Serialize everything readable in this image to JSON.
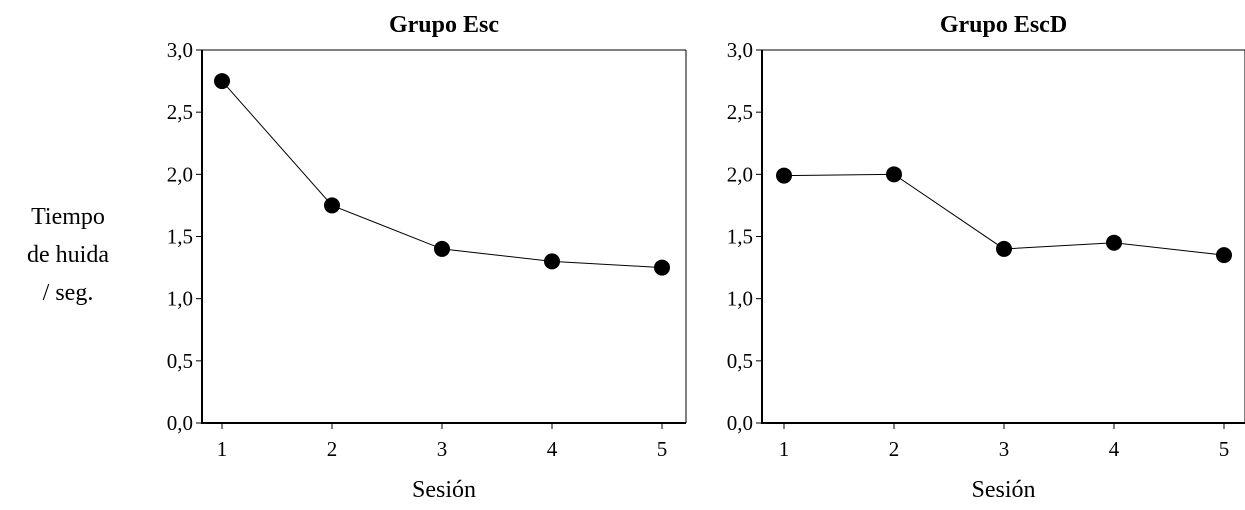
{
  "ylabel_lines": [
    "Tiempo",
    "de huida",
    "/ seg."
  ],
  "chart_data": [
    {
      "type": "line",
      "title": "Grupo Esc",
      "xlabel": "Sesión",
      "ylabel": "Tiempo de huida / seg.",
      "x": [
        1,
        2,
        3,
        4,
        5
      ],
      "x_tick_labels": [
        "1",
        "2",
        "3",
        "4",
        "5"
      ],
      "y_ticks": [
        0.0,
        0.5,
        1.0,
        1.5,
        2.0,
        2.5,
        3.0
      ],
      "y_tick_labels": [
        "0,0",
        "0,5",
        "1,0",
        "1,5",
        "2,0",
        "2,5",
        "3,0"
      ],
      "ylim": [
        0,
        3
      ],
      "grid": false,
      "series": [
        {
          "values": [
            2.75,
            1.75,
            1.4,
            1.3,
            1.25
          ]
        }
      ]
    },
    {
      "type": "line",
      "title": "Grupo EscD",
      "xlabel": "Sesión",
      "ylabel": "",
      "x": [
        1,
        2,
        3,
        4,
        5
      ],
      "x_tick_labels": [
        "1",
        "2",
        "3",
        "4",
        "5"
      ],
      "y_ticks": [
        0.0,
        0.5,
        1.0,
        1.5,
        2.0,
        2.5,
        3.0
      ],
      "y_tick_labels": [
        "0,0",
        "0,5",
        "1,0",
        "1,5",
        "2,0",
        "2,5",
        "3,0"
      ],
      "ylim": [
        0,
        3
      ],
      "grid": false,
      "series": [
        {
          "values": [
            1.99,
            2.0,
            1.4,
            1.45,
            1.35
          ]
        }
      ]
    }
  ]
}
